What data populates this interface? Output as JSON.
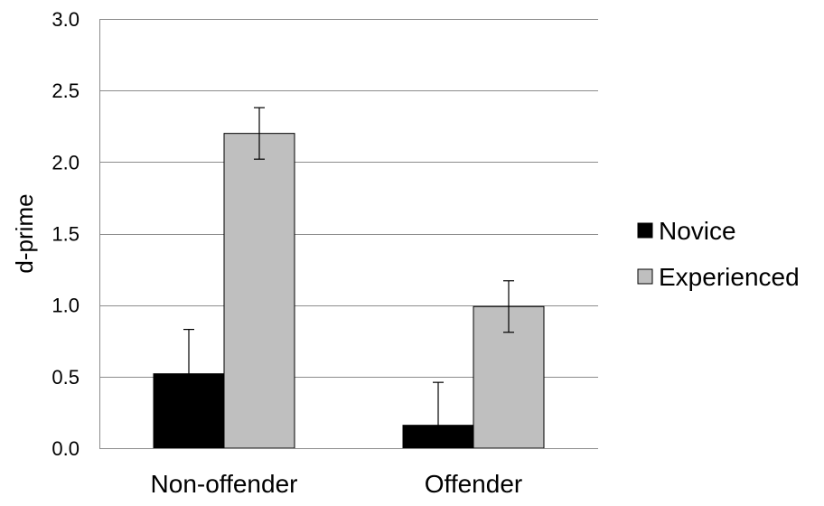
{
  "chart_data": {
    "type": "bar",
    "title": "",
    "xlabel": "",
    "ylabel": "d-prime",
    "ylim": [
      0,
      3.0
    ],
    "yticks": [
      "0.0",
      "0.5",
      "1.0",
      "1.5",
      "2.0",
      "2.5",
      "3.0"
    ],
    "ytick_values": [
      0,
      0.5,
      1.0,
      1.5,
      2.0,
      2.5,
      3.0
    ],
    "categories": [
      "Non-offender",
      "Offender"
    ],
    "series": [
      {
        "name": "Novice",
        "values": [
          0.52,
          0.16
        ],
        "error": [
          0.31,
          0.3
        ],
        "color": "#000000"
      },
      {
        "name": "Experienced",
        "values": [
          2.2,
          0.99
        ],
        "error": [
          0.18,
          0.18
        ],
        "color": "#bfbfbf"
      }
    ],
    "grid": true,
    "legend": "right",
    "colors": {
      "grid": "#8c8c8c",
      "bar_edge": "#000000",
      "error_bar": "#000000"
    }
  }
}
